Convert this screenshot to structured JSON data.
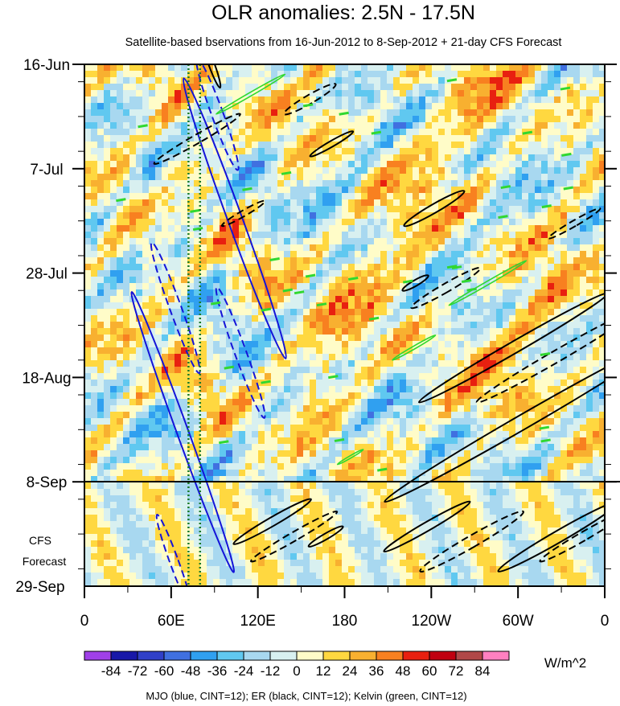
{
  "chart_data": {
    "type": "heatmap",
    "title": "OLR anomalies: 2.5N - 17.5N",
    "subtitle": "Satellite-based bservations from 16-Jun-2012 to 8-Sep-2012 + 21-day CFS Forecast",
    "x_ticks": [
      "0",
      "60E",
      "120E",
      "180",
      "120W",
      "60W",
      "0"
    ],
    "x_tick_lon": [
      0,
      60,
      120,
      180,
      240,
      300,
      360
    ],
    "y_ticks": [
      "16-Jun",
      "7-Jul",
      "28-Jul",
      "18-Aug",
      "8-Sep"
    ],
    "y_tick_day": [
      0,
      21,
      42,
      63,
      84
    ],
    "y_end_label": "29-Sep",
    "y_end_day": 105,
    "forecast_start_day": 84,
    "forecast_label_line1": "CFS",
    "forecast_label_line2": "Forecast",
    "xlim": [
      0,
      360
    ],
    "ylim_days": [
      0,
      105
    ],
    "colorbar_values": [
      "-84",
      "-72",
      "-60",
      "-48",
      "-36",
      "-24",
      "-12",
      "0",
      "12",
      "24",
      "36",
      "48",
      "60",
      "72",
      "84"
    ],
    "colorbar_colors": [
      "#a040e8",
      "#1818a8",
      "#3040c8",
      "#4070e0",
      "#30a0f0",
      "#60c8f0",
      "#a8d8f0",
      "#d8f0f0",
      "#fffcc8",
      "#ffd840",
      "#f8b030",
      "#f88020",
      "#e82010",
      "#c00010",
      "#b04848",
      "#ff80c0"
    ],
    "units": "W/m^2",
    "footer": "MJO (blue, CINT=12); ER (black, CINT=12); Kelvin (green, CINT=12)",
    "reference_lines_lon": [
      72,
      80
    ],
    "contours": {
      "mjo": [
        {
          "lon": 92,
          "day": 10,
          "len": 12,
          "w": 4,
          "dir": 1,
          "dashed": true
        },
        {
          "lon": 104,
          "day": 31,
          "len": 30,
          "w": 5,
          "dir": 1,
          "dashed": false
        },
        {
          "lon": 68,
          "day": 74,
          "len": 30,
          "w": 4,
          "dir": 1,
          "dashed": false
        },
        {
          "lon": 63,
          "day": 49,
          "len": 14,
          "w": 4,
          "dir": 1,
          "dashed": true
        },
        {
          "lon": 108,
          "day": 58,
          "len": 14,
          "w": 4,
          "dir": 1,
          "dashed": true
        },
        {
          "lon": 62,
          "day": 100,
          "len": 10,
          "w": 3,
          "dir": 1,
          "dashed": true
        }
      ],
      "er": [
        {
          "lon": 88,
          "day": 0,
          "len": 5,
          "w": 2,
          "dir": 1,
          "dashed": false
        },
        {
          "lon": 78,
          "day": 15,
          "len": 10,
          "w": 3,
          "dir": -1,
          "dashed": true
        },
        {
          "lon": 156,
          "day": 7,
          "len": 6,
          "w": 3,
          "dir": -1,
          "dashed": true
        },
        {
          "lon": 171,
          "day": 16,
          "len": 5,
          "w": 2,
          "dir": -1,
          "dashed": false
        },
        {
          "lon": 110,
          "day": 30,
          "len": 5,
          "w": 2,
          "dir": -1,
          "dashed": true
        },
        {
          "lon": 242,
          "day": 29,
          "len": 7,
          "w": 3,
          "dir": -1,
          "dashed": false
        },
        {
          "lon": 339,
          "day": 32,
          "len": 6,
          "w": 2,
          "dir": -1,
          "dashed": true
        },
        {
          "lon": 229,
          "day": 44,
          "len": 3,
          "w": 2,
          "dir": -1,
          "dashed": false
        },
        {
          "lon": 250,
          "day": 45,
          "len": 8,
          "w": 3,
          "dir": -1,
          "dashed": true
        },
        {
          "lon": 297,
          "day": 57,
          "len": 22,
          "w": 4,
          "dir": -1,
          "dashed": false
        },
        {
          "lon": 325,
          "day": 59,
          "len": 18,
          "w": 4,
          "dir": -1,
          "dashed": true
        },
        {
          "lon": 303,
          "day": 72,
          "len": 32,
          "w": 5,
          "dir": -1,
          "dashed": false
        },
        {
          "lon": 130,
          "day": 92,
          "len": 9,
          "w": 3,
          "dir": -1,
          "dashed": false
        },
        {
          "lon": 145,
          "day": 95,
          "len": 10,
          "w": 3,
          "dir": -1,
          "dashed": true
        },
        {
          "lon": 167,
          "day": 95,
          "len": 4,
          "w": 2,
          "dir": -1,
          "dashed": false
        },
        {
          "lon": 237,
          "day": 93,
          "len": 10,
          "w": 3,
          "dir": -1,
          "dashed": false
        },
        {
          "lon": 268,
          "day": 96,
          "len": 12,
          "w": 4,
          "dir": -1,
          "dashed": true
        },
        {
          "lon": 328,
          "day": 95,
          "len": 14,
          "w": 4,
          "dir": -1,
          "dashed": false
        },
        {
          "lon": 345,
          "day": 95,
          "len": 10,
          "w": 3,
          "dir": -1,
          "dashed": true
        }
      ],
      "kelvin": [
        {
          "lon": 115,
          "day": 6,
          "len": 8,
          "w": 1.2,
          "dir": -1,
          "dashed": false
        },
        {
          "lon": 279,
          "day": 44,
          "len": 9,
          "w": 1.2,
          "dir": -1,
          "dashed": false
        },
        {
          "lon": 228,
          "day": 57,
          "len": 5,
          "w": 1.0,
          "dir": -1,
          "dashed": false
        },
        {
          "lon": 184,
          "day": 79,
          "len": 3,
          "w": 0.8,
          "dir": -1,
          "dashed": false
        }
      ]
    }
  }
}
